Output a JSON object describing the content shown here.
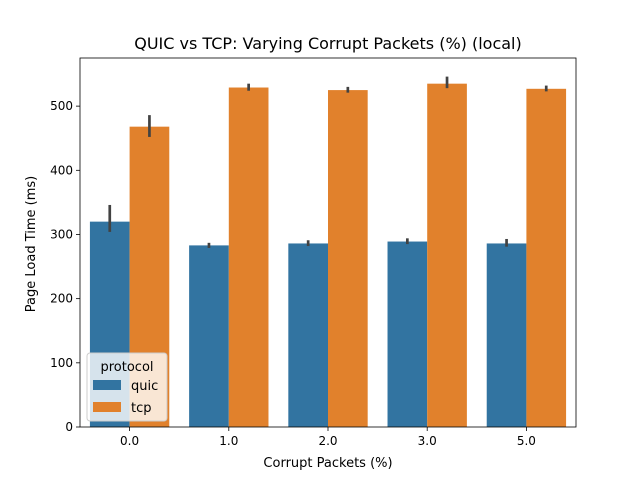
{
  "chart_data": {
    "type": "bar",
    "title": "QUIC vs TCP: Varying Corrupt Packets (%) (local)",
    "xlabel": "Corrupt Packets (%)",
    "ylabel": "Page Load Time (ms)",
    "categories": [
      "0.0",
      "1.0",
      "2.0",
      "3.0",
      "5.0"
    ],
    "ylim": [
      0,
      575
    ],
    "yticks": [
      0,
      100,
      200,
      300,
      400,
      500
    ],
    "grid": false,
    "legend": {
      "title": "protocol",
      "placement": "lower-left"
    },
    "series": [
      {
        "name": "quic",
        "color": "#3274a1",
        "values": [
          320,
          283,
          286,
          289,
          286
        ],
        "ci_low": [
          304,
          279,
          282,
          285,
          281
        ],
        "ci_high": [
          346,
          287,
          291,
          294,
          293
        ]
      },
      {
        "name": "tcp",
        "color": "#e1812c",
        "values": [
          468,
          529,
          525,
          535,
          527
        ],
        "ci_low": [
          452,
          524,
          521,
          528,
          523
        ],
        "ci_high": [
          486,
          535,
          530,
          546,
          532
        ]
      }
    ]
  }
}
